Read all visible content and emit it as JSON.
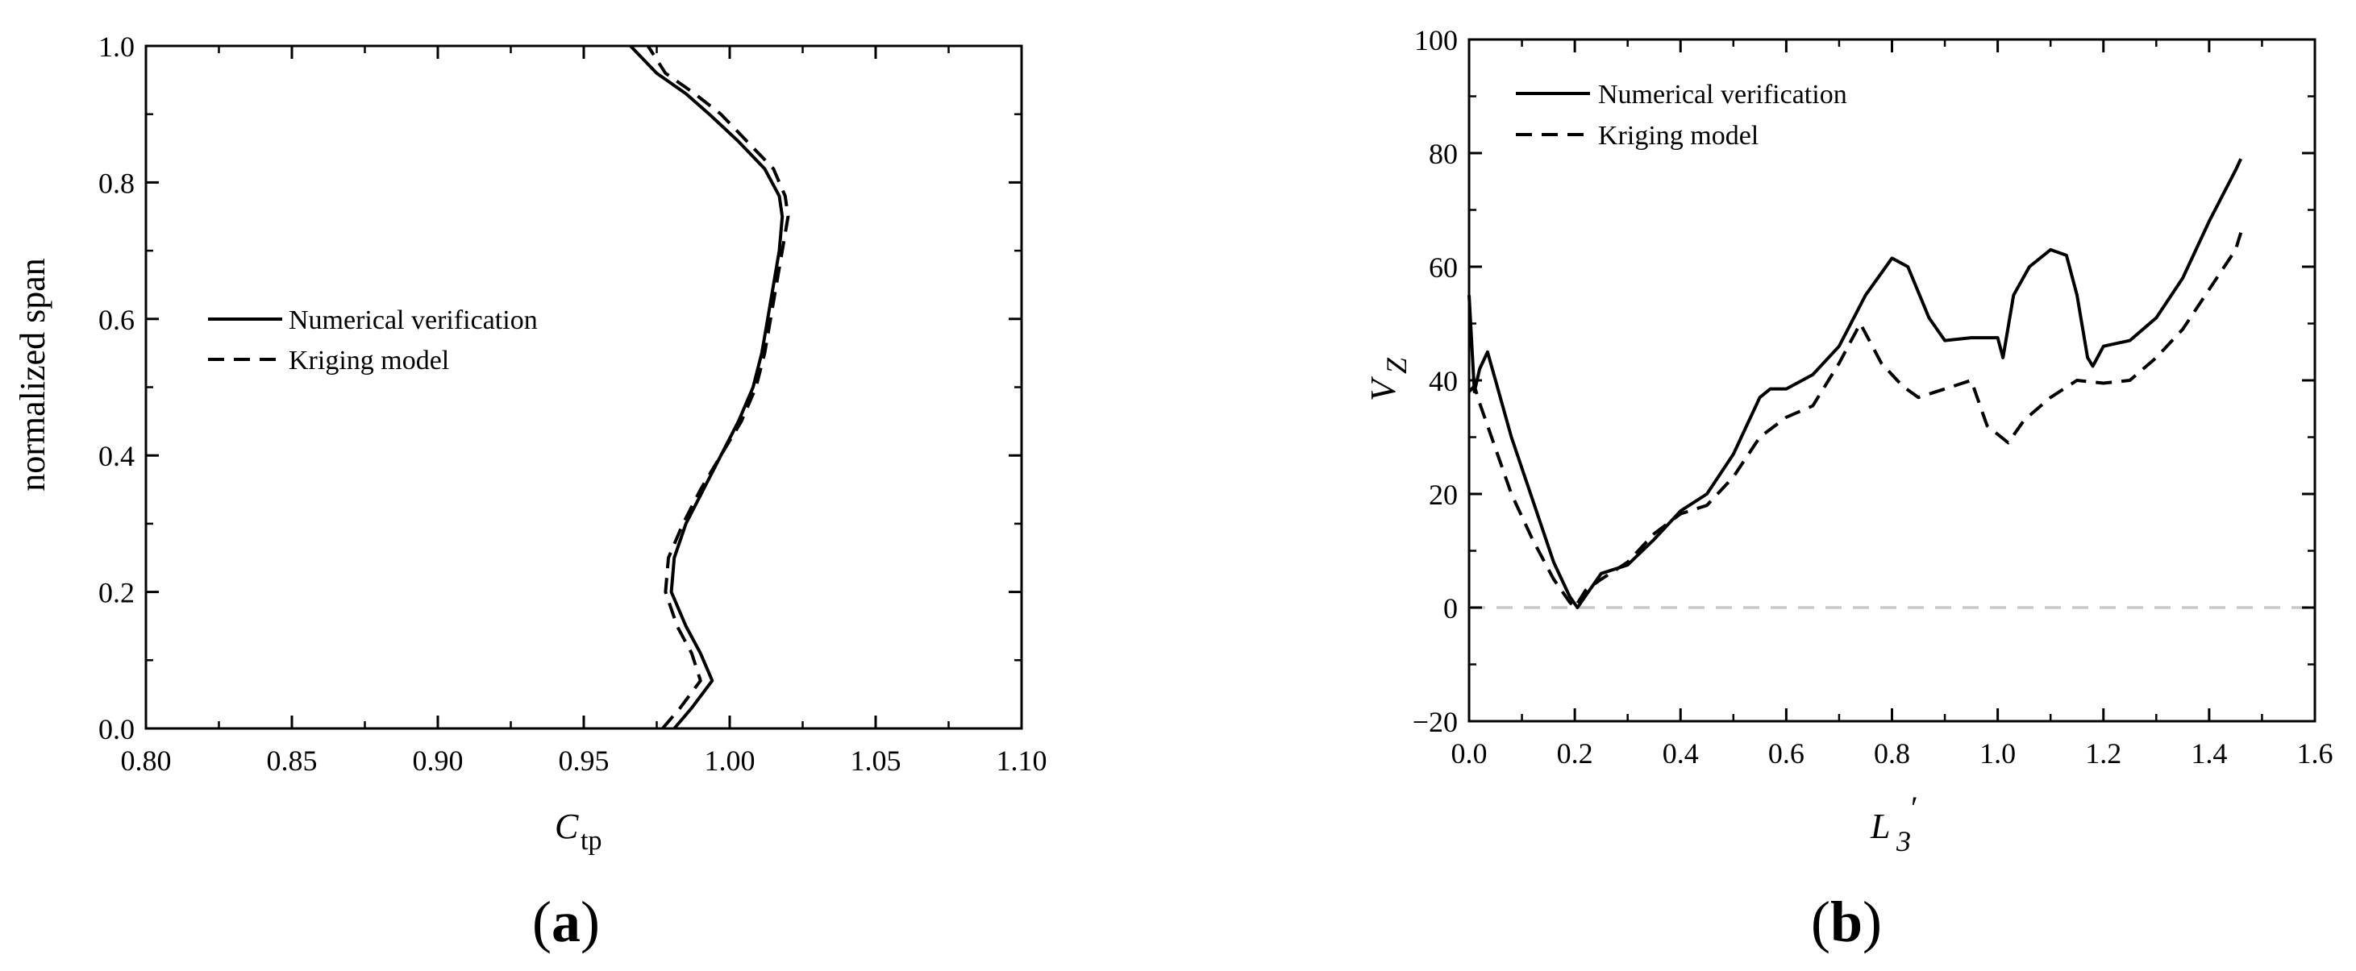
{
  "chart_data": [
    {
      "panel": "(a)",
      "panel_paren_open": "(",
      "panel_letter": "a",
      "panel_paren_close": ")",
      "type": "line",
      "title": "",
      "xlabel_main": "C",
      "xlabel_sub": "tp",
      "ylabel": "normalized span",
      "xlim": [
        0.8,
        1.1
      ],
      "ylim": [
        0.0,
        1.0
      ],
      "xticks": [
        "0.80",
        "0.85",
        "0.90",
        "0.95",
        "1.00",
        "1.05",
        "1.10"
      ],
      "yticks": [
        "0.0",
        "0.2",
        "0.4",
        "0.6",
        "0.8",
        "1.0"
      ],
      "grid": false,
      "legend_placement": "center-left",
      "series": [
        {
          "name": "Numerical verification",
          "style": "solid",
          "points": [
            [
              0.981,
              0.0
            ],
            [
              0.987,
              0.03
            ],
            [
              0.994,
              0.07
            ],
            [
              0.99,
              0.11
            ],
            [
              0.985,
              0.15
            ],
            [
              0.98,
              0.2
            ],
            [
              0.981,
              0.25
            ],
            [
              0.985,
              0.3
            ],
            [
              0.991,
              0.35
            ],
            [
              0.997,
              0.4
            ],
            [
              1.003,
              0.45
            ],
            [
              1.008,
              0.5
            ],
            [
              1.011,
              0.55
            ],
            [
              1.013,
              0.6
            ],
            [
              1.015,
              0.65
            ],
            [
              1.017,
              0.7
            ],
            [
              1.018,
              0.75
            ],
            [
              1.017,
              0.78
            ],
            [
              1.012,
              0.82
            ],
            [
              1.003,
              0.86
            ],
            [
              0.993,
              0.9
            ],
            [
              0.985,
              0.93
            ],
            [
              0.975,
              0.96
            ],
            [
              0.966,
              1.0
            ]
          ]
        },
        {
          "name": "Kriging model",
          "style": "dashed",
          "points": [
            [
              0.977,
              0.0
            ],
            [
              0.983,
              0.03
            ],
            [
              0.99,
              0.07
            ],
            [
              0.987,
              0.11
            ],
            [
              0.982,
              0.15
            ],
            [
              0.978,
              0.2
            ],
            [
              0.979,
              0.25
            ],
            [
              0.984,
              0.3
            ],
            [
              0.99,
              0.35
            ],
            [
              0.997,
              0.4
            ],
            [
              1.004,
              0.45
            ],
            [
              1.009,
              0.5
            ],
            [
              1.012,
              0.55
            ],
            [
              1.014,
              0.6
            ],
            [
              1.016,
              0.65
            ],
            [
              1.018,
              0.7
            ],
            [
              1.02,
              0.75
            ],
            [
              1.019,
              0.78
            ],
            [
              1.015,
              0.82
            ],
            [
              1.006,
              0.86
            ],
            [
              0.997,
              0.9
            ],
            [
              0.988,
              0.93
            ],
            [
              0.978,
              0.96
            ],
            [
              0.972,
              1.0
            ]
          ]
        }
      ]
    },
    {
      "panel": "(b)",
      "panel_paren_open": "(",
      "panel_letter": "b",
      "panel_paren_close": ")",
      "type": "line",
      "title": "",
      "xlabel_main": "L",
      "xlabel_sub": "3",
      "xlabel_prime": "′",
      "ylabel_main": "V",
      "ylabel_sub": "Z",
      "xlim": [
        0.0,
        1.6
      ],
      "ylim": [
        -20,
        100
      ],
      "xticks": [
        "0.0",
        "0.2",
        "0.4",
        "0.6",
        "0.8",
        "1.0",
        "1.2",
        "1.4",
        "1.6"
      ],
      "yticks": [
        "−20",
        "0",
        "20",
        "40",
        "60",
        "80",
        "100"
      ],
      "grid": false,
      "legend_placement": "top-left",
      "reference_line": {
        "y": 0,
        "style": "dashed",
        "color": "#c8c8c8"
      },
      "series": [
        {
          "name": "Numerical verification",
          "style": "solid",
          "points": [
            [
              0.0,
              55
            ],
            [
              0.01,
              38
            ],
            [
              0.02,
              42
            ],
            [
              0.035,
              45
            ],
            [
              0.05,
              40
            ],
            [
              0.08,
              30
            ],
            [
              0.12,
              19
            ],
            [
              0.16,
              8
            ],
            [
              0.19,
              2
            ],
            [
              0.205,
              0
            ],
            [
              0.22,
              2
            ],
            [
              0.25,
              6
            ],
            [
              0.3,
              7.5
            ],
            [
              0.35,
              12
            ],
            [
              0.4,
              17
            ],
            [
              0.45,
              20
            ],
            [
              0.5,
              27
            ],
            [
              0.55,
              37
            ],
            [
              0.57,
              38.5
            ],
            [
              0.6,
              38.5
            ],
            [
              0.65,
              41
            ],
            [
              0.7,
              46
            ],
            [
              0.75,
              55
            ],
            [
              0.8,
              61.5
            ],
            [
              0.83,
              60
            ],
            [
              0.87,
              51
            ],
            [
              0.9,
              47
            ],
            [
              0.95,
              47.5
            ],
            [
              1.0,
              47.5
            ],
            [
              1.01,
              44
            ],
            [
              1.03,
              55
            ],
            [
              1.06,
              60
            ],
            [
              1.1,
              63
            ],
            [
              1.13,
              62
            ],
            [
              1.15,
              55
            ],
            [
              1.17,
              44
            ],
            [
              1.18,
              42.5
            ],
            [
              1.2,
              46
            ],
            [
              1.25,
              47
            ],
            [
              1.3,
              51
            ],
            [
              1.35,
              58
            ],
            [
              1.4,
              68
            ],
            [
              1.45,
              77
            ],
            [
              1.46,
              79
            ]
          ]
        },
        {
          "name": "Kriging model",
          "style": "dashed",
          "points": [
            [
              0.0,
              38
            ],
            [
              0.01,
              39
            ],
            [
              0.02,
              36
            ],
            [
              0.05,
              28
            ],
            [
              0.08,
              20
            ],
            [
              0.12,
              12
            ],
            [
              0.16,
              5
            ],
            [
              0.19,
              1
            ],
            [
              0.2,
              0
            ],
            [
              0.22,
              3
            ],
            [
              0.25,
              5
            ],
            [
              0.3,
              8
            ],
            [
              0.35,
              13
            ],
            [
              0.4,
              16.5
            ],
            [
              0.45,
              18
            ],
            [
              0.5,
              23
            ],
            [
              0.55,
              30
            ],
            [
              0.6,
              33.5
            ],
            [
              0.65,
              35.5
            ],
            [
              0.7,
              43
            ],
            [
              0.74,
              50
            ],
            [
              0.78,
              43
            ],
            [
              0.82,
              39
            ],
            [
              0.85,
              37
            ],
            [
              0.9,
              38.5
            ],
            [
              0.95,
              40
            ],
            [
              0.98,
              32
            ],
            [
              1.02,
              29
            ],
            [
              1.05,
              33
            ],
            [
              1.1,
              37
            ],
            [
              1.15,
              40
            ],
            [
              1.2,
              39.5
            ],
            [
              1.25,
              40
            ],
            [
              1.3,
              44
            ],
            [
              1.35,
              49
            ],
            [
              1.4,
              56
            ],
            [
              1.45,
              63
            ],
            [
              1.46,
              66
            ]
          ]
        }
      ]
    }
  ]
}
